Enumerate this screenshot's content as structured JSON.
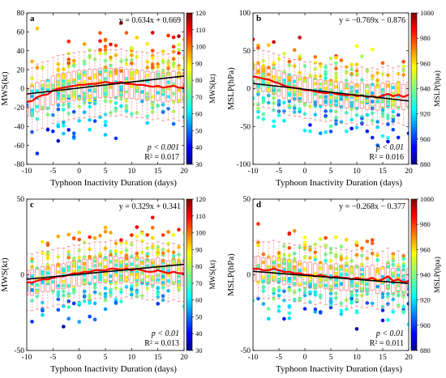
{
  "figure": {
    "xlabel": "Typhoon Inactivity Duration (days)"
  },
  "chart_data": [
    {
      "type": "scatter",
      "panel": "a",
      "ylabel": "MWS(kt)",
      "colorbar_label": "MWS(kt)",
      "xlim": [
        -10,
        20
      ],
      "ylim": [
        -80,
        80
      ],
      "yticks": [
        -80,
        -60,
        -40,
        -20,
        0,
        20,
        40,
        60,
        80
      ],
      "xticks": [
        -10,
        -5,
        0,
        5,
        10,
        15,
        20
      ],
      "clim": [
        30,
        120
      ],
      "cticks": [
        30,
        40,
        50,
        60,
        70,
        80,
        90,
        100,
        110,
        120
      ],
      "colormap": "jet",
      "equation": "y = 0.634x + 0.669",
      "fit": {
        "slope": 0.634,
        "intercept": 0.669
      },
      "p_label": "p < 0.001",
      "r2_label": "R² = 0.017",
      "stats_position": "bottom-right",
      "equation_position": "top-right",
      "mean_curve": [
        [
          -10,
          -14
        ],
        [
          -9,
          -13
        ],
        [
          -8,
          -9
        ],
        [
          -7,
          -7
        ],
        [
          -6,
          -6
        ],
        [
          -5,
          -2
        ],
        [
          -4,
          0
        ],
        [
          -3,
          1
        ],
        [
          -2,
          2
        ],
        [
          -1,
          3
        ],
        [
          0,
          4
        ],
        [
          1,
          4
        ],
        [
          2,
          5
        ],
        [
          3,
          5
        ],
        [
          4,
          6
        ],
        [
          5,
          7
        ],
        [
          6,
          6
        ],
        [
          7,
          6
        ],
        [
          8,
          7
        ],
        [
          9,
          5
        ],
        [
          10,
          5
        ],
        [
          11,
          4
        ],
        [
          12,
          4
        ],
        [
          13,
          3
        ],
        [
          14,
          2
        ],
        [
          15,
          3
        ],
        [
          16,
          1
        ],
        [
          17,
          2
        ],
        [
          18,
          3
        ],
        [
          19,
          1
        ],
        [
          20,
          1
        ]
      ],
      "spread": 28,
      "seed": 11,
      "point_count": 360
    },
    {
      "type": "scatter",
      "panel": "b",
      "ylabel": "MSLP(hPa)",
      "colorbar_label": "MSLP(hpa)",
      "xlim": [
        -10,
        20
      ],
      "ylim": [
        -100,
        100
      ],
      "yticks": [
        -100,
        -50,
        0,
        50,
        100
      ],
      "xticks": [
        -10,
        -5,
        0,
        5,
        10,
        15,
        20
      ],
      "clim": [
        880,
        1000
      ],
      "cticks": [
        880,
        900,
        920,
        940,
        960,
        980,
        1000
      ],
      "colormap": "jet",
      "equation": "y = −0.769x − 0.876",
      "fit": {
        "slope": -0.769,
        "intercept": -0.876
      },
      "p_label": "p < 0.01",
      "r2_label": "R² = 0.016",
      "stats_position": "bottom-right",
      "equation_position": "top-right",
      "mean_curve": [
        [
          -10,
          16
        ],
        [
          -9,
          15
        ],
        [
          -8,
          13
        ],
        [
          -7,
          12
        ],
        [
          -6,
          9
        ],
        [
          -5,
          7
        ],
        [
          -4,
          4
        ],
        [
          -3,
          2
        ],
        [
          -2,
          1
        ],
        [
          -1,
          0
        ],
        [
          0,
          -2
        ],
        [
          1,
          -2
        ],
        [
          2,
          -4
        ],
        [
          3,
          -5
        ],
        [
          4,
          -6
        ],
        [
          5,
          -5
        ],
        [
          6,
          -7
        ],
        [
          7,
          -8
        ],
        [
          8,
          -9
        ],
        [
          9,
          -8
        ],
        [
          10,
          -10
        ],
        [
          11,
          -9
        ],
        [
          12,
          -11
        ],
        [
          13,
          -10
        ],
        [
          14,
          -12
        ],
        [
          15,
          -9
        ],
        [
          16,
          -7
        ],
        [
          17,
          -10
        ],
        [
          18,
          -8
        ],
        [
          19,
          -11
        ],
        [
          20,
          -8
        ]
      ],
      "spread": 30,
      "seed": 23,
      "point_count": 360
    },
    {
      "type": "scatter",
      "panel": "c",
      "ylabel": "MWS(kt)",
      "colorbar_label": "MWS(kt)",
      "xlim": [
        -10,
        20
      ],
      "ylim": [
        -50,
        50
      ],
      "yticks": [
        -50,
        0,
        50
      ],
      "xticks": [
        -10,
        -5,
        0,
        5,
        10,
        15,
        20
      ],
      "clim": [
        30,
        120
      ],
      "cticks": [
        30,
        40,
        50,
        60,
        70,
        80,
        90,
        100,
        110,
        120
      ],
      "colormap": "jet",
      "equation": "y = 0.329x + 0.341",
      "fit": {
        "slope": 0.329,
        "intercept": 0.341
      },
      "p_label": "p < 0.01",
      "r2_label": "R² = 0.013",
      "stats_position": "bottom-right",
      "equation_position": "top-right",
      "mean_curve": [
        [
          -10,
          -5
        ],
        [
          -9,
          -5
        ],
        [
          -8,
          -4
        ],
        [
          -7,
          -3
        ],
        [
          -6,
          -3
        ],
        [
          -5,
          -2
        ],
        [
          -4,
          -1
        ],
        [
          -3,
          -1
        ],
        [
          -2,
          0
        ],
        [
          -1,
          1
        ],
        [
          0,
          1
        ],
        [
          1,
          2
        ],
        [
          2,
          2
        ],
        [
          3,
          3
        ],
        [
          4,
          3
        ],
        [
          5,
          3
        ],
        [
          6,
          4
        ],
        [
          7,
          4
        ],
        [
          8,
          3
        ],
        [
          9,
          4
        ],
        [
          10,
          3
        ],
        [
          11,
          4
        ],
        [
          12,
          3
        ],
        [
          13,
          2
        ],
        [
          14,
          2
        ],
        [
          15,
          3
        ],
        [
          16,
          2
        ],
        [
          17,
          1
        ],
        [
          18,
          2
        ],
        [
          19,
          1
        ],
        [
          20,
          1
        ]
      ],
      "spread": 15,
      "seed": 37,
      "point_count": 380
    },
    {
      "type": "scatter",
      "panel": "d",
      "ylabel": "MSLP(hPa)",
      "colorbar_label": "MSLP(hpa)",
      "xlim": [
        -10,
        20
      ],
      "ylim": [
        -50,
        50
      ],
      "yticks": [
        -50,
        0,
        50
      ],
      "xticks": [
        -10,
        -5,
        0,
        5,
        10,
        15,
        20
      ],
      "clim": [
        880,
        1000
      ],
      "cticks": [
        880,
        900,
        920,
        940,
        960,
        980,
        1000
      ],
      "colormap": "jet",
      "equation": "y = −0.268x − 0.377",
      "fit": {
        "slope": -0.268,
        "intercept": -0.377
      },
      "p_label": "p < 0.01",
      "r2_label": "R² = 0.011",
      "stats_position": "bottom-right",
      "equation_position": "top-right",
      "mean_curve": [
        [
          -10,
          4
        ],
        [
          -9,
          4
        ],
        [
          -8,
          3
        ],
        [
          -7,
          3
        ],
        [
          -6,
          4
        ],
        [
          -5,
          3
        ],
        [
          -4,
          2
        ],
        [
          -3,
          2
        ],
        [
          -2,
          1
        ],
        [
          -1,
          1
        ],
        [
          0,
          0
        ],
        [
          1,
          0
        ],
        [
          2,
          -1
        ],
        [
          3,
          0
        ],
        [
          4,
          -1
        ],
        [
          5,
          -2
        ],
        [
          6,
          -1
        ],
        [
          7,
          -2
        ],
        [
          8,
          -2
        ],
        [
          9,
          -3
        ],
        [
          10,
          -2
        ],
        [
          11,
          -3
        ],
        [
          12,
          -3
        ],
        [
          13,
          -2
        ],
        [
          14,
          -4
        ],
        [
          15,
          -3
        ],
        [
          16,
          -1
        ],
        [
          17,
          -4
        ],
        [
          18,
          -3
        ],
        [
          19,
          -5
        ],
        [
          20,
          -4
        ]
      ],
      "spread": 15,
      "seed": 53,
      "point_count": 380
    }
  ]
}
